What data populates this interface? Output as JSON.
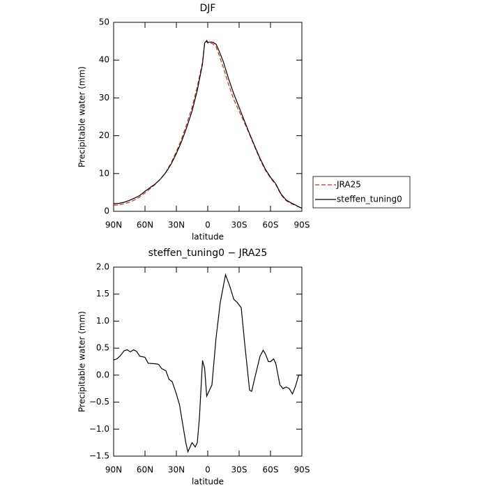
{
  "chart_data": [
    {
      "type": "line",
      "title": "DJF",
      "x_label": "latitude",
      "y_label": "Precipitable water (mm)",
      "x": [
        90,
        85,
        80,
        75,
        70,
        65,
        60,
        55,
        50,
        45,
        40,
        35,
        30,
        25,
        20,
        15,
        10,
        5,
        3,
        1,
        0,
        -3,
        -5,
        -8,
        -10,
        -15,
        -20,
        -25,
        -30,
        -35,
        -40,
        -45,
        -50,
        -55,
        -60,
        -65,
        -70,
        -75,
        -80,
        -85,
        -90
      ],
      "series": [
        {
          "name": "JRA25",
          "color": "#e02020",
          "style": "dashed",
          "values": [
            1.6,
            1.7,
            2.0,
            2.4,
            3.0,
            3.8,
            4.9,
            6.0,
            7.2,
            8.6,
            10.4,
            12.8,
            15.8,
            19.2,
            23.2,
            27.5,
            33,
            39.5,
            44.2,
            45.0,
            44.5,
            44.5,
            44.3,
            43.5,
            42,
            38,
            33.5,
            29.5,
            26.5,
            23.5,
            20.3,
            17.0,
            13.7,
            10.9,
            8.8,
            7.1,
            4.4,
            2.8,
            2.0,
            1.4,
            0.8
          ]
        },
        {
          "name": "steffen_tuning0",
          "color": "#000000",
          "style": "solid",
          "values": [
            2.0,
            2.1,
            2.4,
            2.9,
            3.5,
            4.2,
            5.3,
            6.3,
            7.3,
            8.6,
            10.3,
            12.5,
            15.3,
            18.5,
            22.3,
            26.5,
            32,
            39,
            44.5,
            45.2,
            44.7,
            44.8,
            44.7,
            44.2,
            43,
            39.5,
            35,
            31,
            27.5,
            24,
            20.5,
            17.2,
            14,
            11.2,
            9,
            7.3,
            4.6,
            3.0,
            2.2,
            1.5,
            0.8
          ]
        }
      ],
      "xlim": [
        90,
        -90
      ],
      "xticks": [
        {
          "value": 90,
          "label": "90N"
        },
        {
          "value": 60,
          "label": "60N"
        },
        {
          "value": 30,
          "label": "30N"
        },
        0,
        {
          "value": -30,
          "label": "30S"
        },
        {
          "value": -60,
          "label": "60S"
        },
        {
          "value": -90,
          "label": "90S"
        }
      ],
      "ylim": [
        0,
        50
      ],
      "yticks": [
        0,
        10,
        20,
        30,
        40,
        50
      ],
      "legend": "right"
    },
    {
      "type": "line",
      "title": "steffen_tuning0 − JRA25",
      "x_label": "latitude",
      "y_label": "Precipitable water (mm)",
      "x": [
        90,
        87,
        84,
        80,
        77,
        74,
        71,
        68,
        65,
        60,
        57,
        50,
        47,
        44,
        40,
        37,
        34,
        30,
        27,
        24,
        21,
        19,
        15,
        12,
        10,
        8,
        5,
        3,
        1,
        -4,
        -8,
        -12,
        -17,
        -21,
        -25,
        -28,
        -32,
        -35,
        -40,
        -42,
        -45,
        -50,
        -53,
        -55,
        -58,
        -60,
        -63,
        -65,
        -69,
        -72,
        -75,
        -78,
        -81,
        -84,
        -87,
        -90
      ],
      "series": [
        {
          "name": null,
          "color": "#000000",
          "style": "solid",
          "values": [
            0.28,
            0.3,
            0.35,
            0.45,
            0.47,
            0.43,
            0.47,
            0.44,
            0.35,
            0.33,
            0.22,
            0.21,
            0.2,
            0.12,
            0.08,
            -0.08,
            -0.12,
            -0.35,
            -0.55,
            -0.9,
            -1.25,
            -1.42,
            -1.25,
            -1.33,
            -1.25,
            -0.8,
            0.27,
            0.13,
            -0.39,
            -0.18,
            0.7,
            1.35,
            1.86,
            1.65,
            1.4,
            1.35,
            1.25,
            0.65,
            -0.28,
            -0.3,
            -0.05,
            0.35,
            0.46,
            0.4,
            0.25,
            0.25,
            0.3,
            0.22,
            -0.18,
            -0.25,
            -0.22,
            -0.25,
            -0.35,
            -0.2,
            0.0,
            0.0
          ]
        }
      ],
      "xlim": [
        90,
        -90
      ],
      "xticks": [
        {
          "value": 90,
          "label": "90N"
        },
        {
          "value": 60,
          "label": "60N"
        },
        {
          "value": 30,
          "label": "30N"
        },
        0,
        {
          "value": -30,
          "label": "30S"
        },
        {
          "value": -60,
          "label": "60S"
        },
        {
          "value": -90,
          "label": "90S"
        }
      ],
      "ylim": [
        -1.5,
        2.0
      ],
      "yticks": [
        {
          "value": -1.5,
          "label": "−1.5"
        },
        {
          "value": -1.0,
          "label": "−1.0"
        },
        {
          "value": -0.5,
          "label": "−0.5"
        },
        {
          "value": 0.0,
          "label": "0.0"
        },
        0.5,
        {
          "value": 1.0,
          "label": "1.0"
        },
        1.5,
        {
          "value": 2.0,
          "label": "2.0"
        }
      ]
    }
  ]
}
